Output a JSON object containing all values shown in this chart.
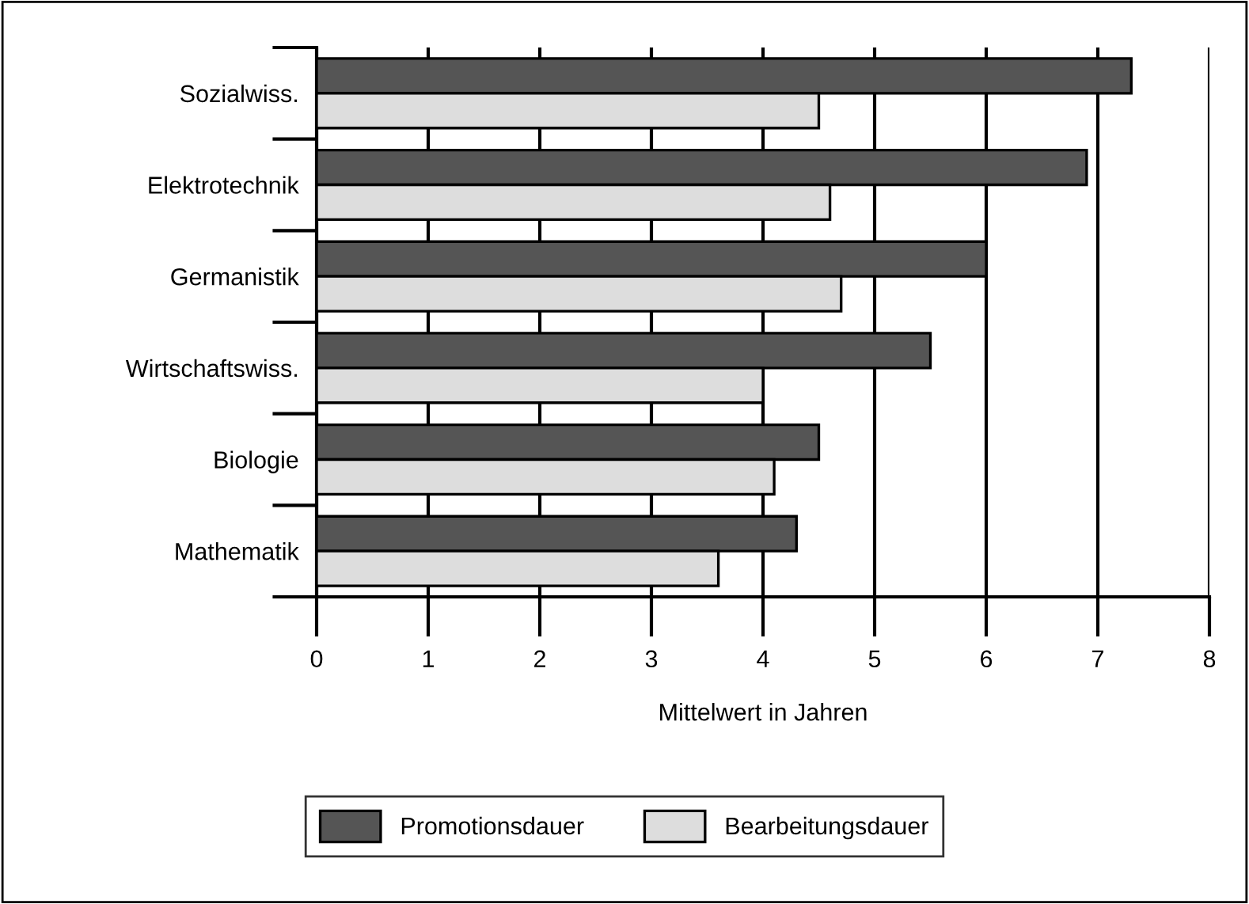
{
  "chart_data": {
    "type": "bar",
    "orientation": "horizontal",
    "categories": [
      "Sozialwiss.",
      "Elektrotechnik",
      "Germanistik",
      "Wirtschaftswiss.",
      "Biologie",
      "Mathematik"
    ],
    "series": [
      {
        "name": "Promotionsdauer",
        "color": "#555555",
        "values": [
          7.3,
          6.9,
          6.0,
          5.5,
          4.5,
          4.3
        ]
      },
      {
        "name": "Bearbeitungsdauer",
        "color": "#dddddd",
        "values": [
          4.5,
          4.6,
          4.7,
          4.0,
          4.1,
          3.6
        ]
      }
    ],
    "xlabel": "Mittelwert in Jahren",
    "xlim": [
      0,
      8
    ],
    "xticks": [
      0,
      1,
      2,
      3,
      4,
      5,
      6,
      7,
      8
    ],
    "grid": "x",
    "legend": "bottom"
  }
}
